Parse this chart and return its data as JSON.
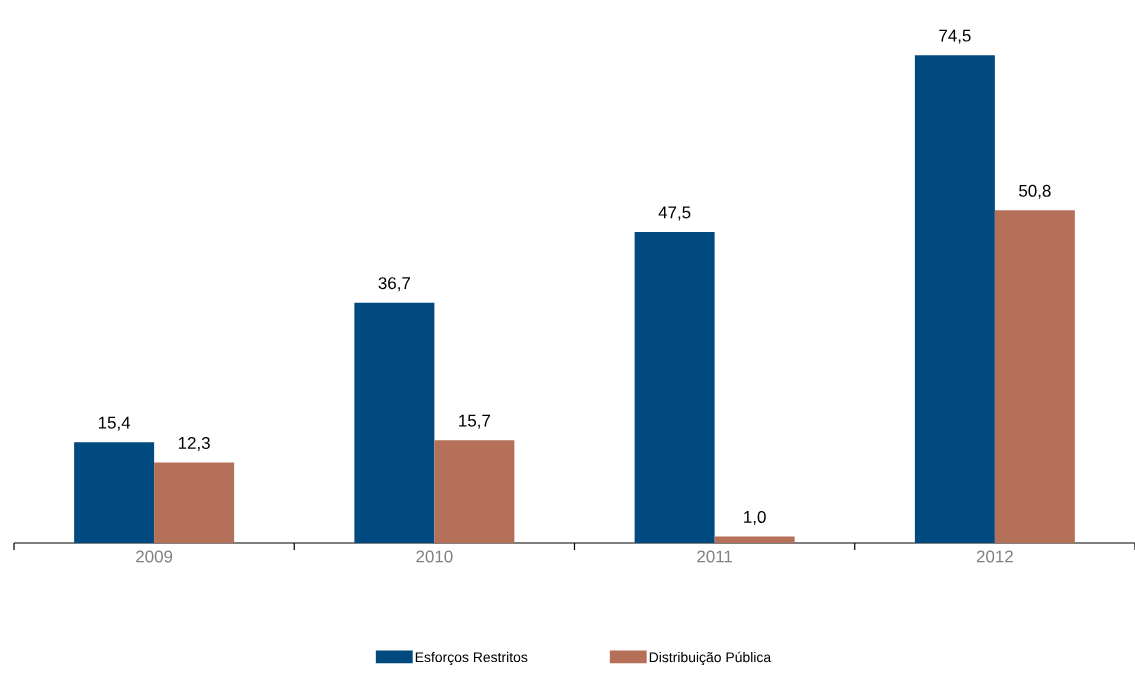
{
  "chart_data": {
    "type": "bar",
    "categories": [
      "2009",
      "2010",
      "2011",
      "2012"
    ],
    "series": [
      {
        "name": "Esforços Restritos",
        "color": "#004a80",
        "values": [
          15.4,
          36.7,
          47.5,
          74.5
        ],
        "value_labels": [
          "15,4",
          "36,7",
          "47,5",
          "74,5"
        ]
      },
      {
        "name": "Distribuição Pública",
        "color": "#b5705a",
        "values": [
          12.3,
          15.7,
          1.0,
          50.8
        ],
        "value_labels": [
          "12,3",
          "15,7",
          "1,0",
          "50,8"
        ]
      }
    ],
    "legend": "bottom"
  }
}
